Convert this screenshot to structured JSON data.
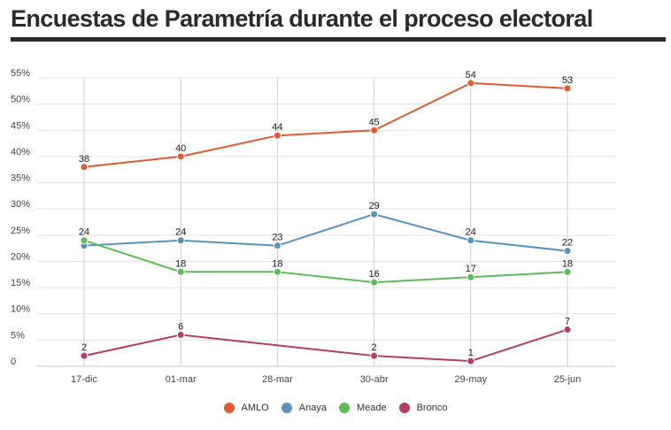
{
  "title": "Encuestas de Parametría durante el proceso electoral",
  "chart_data": {
    "type": "line",
    "categories": [
      "17-dic",
      "01-mar",
      "28-mar",
      "30-abr",
      "29-may",
      "25-jun"
    ],
    "yticks": [
      "0",
      "5%",
      "10%",
      "15%",
      "20%",
      "25%",
      "30%",
      "35%",
      "40%",
      "45%",
      "50%",
      "55%"
    ],
    "ylim": [
      0,
      55
    ],
    "grid": true,
    "legend_position": "bottom",
    "series": [
      {
        "name": "AMLO",
        "color": "#e05a34",
        "values": [
          38,
          40,
          44,
          45,
          54,
          53
        ],
        "labels": [
          "38",
          "40",
          "44",
          "45",
          "54",
          "53"
        ]
      },
      {
        "name": "Anaya",
        "color": "#5b93b8",
        "values": [
          23,
          24,
          23,
          29,
          24,
          22
        ],
        "labels": [
          "",
          "24",
          "23",
          "29",
          "24",
          "22"
        ]
      },
      {
        "name": "Meade",
        "color": "#5fba5a",
        "values": [
          24,
          18,
          18,
          16,
          17,
          18
        ],
        "labels": [
          "24",
          "18",
          "18",
          "16",
          "17",
          "18"
        ]
      },
      {
        "name": "Bronco",
        "color": "#b53e68",
        "values": [
          2,
          6,
          null,
          2,
          1,
          7
        ],
        "labels": [
          "2",
          "6",
          "",
          "2",
          "1",
          "7"
        ]
      }
    ]
  }
}
